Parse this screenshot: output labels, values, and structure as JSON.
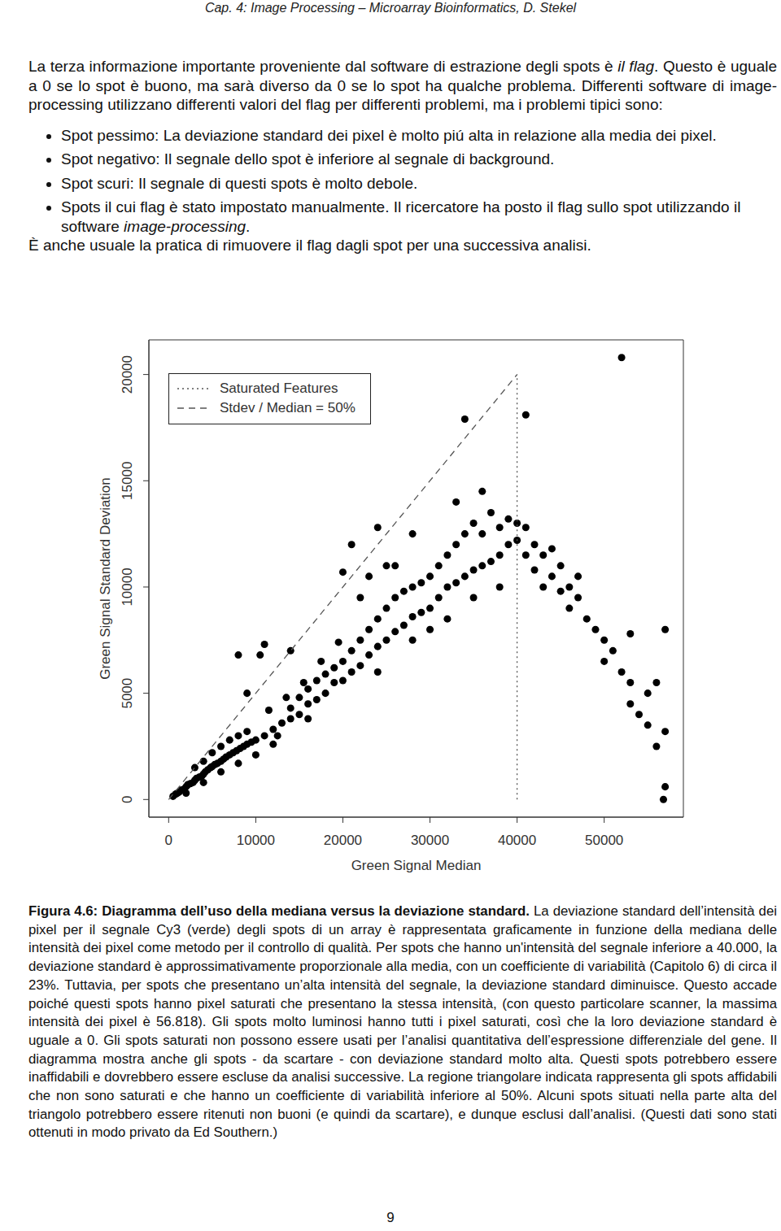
{
  "header": "Cap. 4: Image Processing – Microarray Bioinformatics, D. Stekel",
  "intro": [
    {
      "text": "La terza informazione importante proveniente dal software di estrazione degli spots è "
    },
    {
      "text": "il flag",
      "italic": true
    },
    {
      "text": ". Questo è uguale a 0 se lo spot è buono, ma sarà diverso da 0 se lo spot  ha qualche problema. Differenti software di image-processing utilizzano differenti valori del flag per differenti problemi, ma i problemi tipici sono:"
    }
  ],
  "bullets": [
    [
      {
        "text": "Spot pessimo: La deviazione standard dei pixel è molto piú alta in relazione alla media dei pixel."
      }
    ],
    [
      {
        "text": "Spot negativo: Il segnale dello spot è inferiore al segnale di background."
      }
    ],
    [
      {
        "text": "Spot scuri: Il segnale di questi spots è molto debole."
      }
    ],
    [
      {
        "text": "Spots il cui flag è stato impostato manualmente.  Il ricercatore ha posto il flag sullo spot utilizzando il software "
      },
      {
        "text": "image-processing",
        "italic": true
      },
      {
        "text": "."
      }
    ]
  ],
  "outro": "È anche usuale la pratica di rimuovere il flag dagli spot per una successiva analisi.",
  "chart_data": {
    "type": "scatter",
    "xlabel": "Green Signal Median",
    "ylabel": "Green Signal Standard Deviation",
    "xlim": [
      -2270,
      59090
    ],
    "ylim": [
      -830,
      21630
    ],
    "xticks": [
      0,
      10000,
      20000,
      30000,
      40000,
      50000
    ],
    "yticks": [
      0,
      5000,
      10000,
      15000,
      20000
    ],
    "legend": "upper left",
    "series": [
      {
        "type": "scatter",
        "color": "#000000",
        "marker": "circle",
        "x": [
          500,
          800,
          1000,
          1200,
          1500,
          1800,
          2000,
          2200,
          2500,
          2800,
          3000,
          3200,
          3500,
          3800,
          4000,
          4200,
          4500,
          4800,
          5000,
          5300,
          5600,
          6000,
          6300,
          6600,
          7000,
          7400,
          7800,
          8200,
          8600,
          9000,
          9500,
          10000,
          3000,
          4000,
          5000,
          6000,
          7000,
          8000,
          9000,
          2000,
          4000,
          6000,
          8000,
          10000,
          11000,
          12000,
          12500,
          13000,
          14000,
          14000,
          15000,
          15000,
          16000,
          16000,
          17000,
          17000,
          18000,
          18000,
          19000,
          19000,
          20000,
          20000,
          11500,
          13500,
          15500,
          17500,
          19500,
          12000,
          16000,
          9000,
          14000,
          10500,
          8000,
          11000,
          21000,
          20000,
          24000,
          34000,
          41000,
          52000,
          25000,
          28000,
          23000,
          21000,
          21000,
          22000,
          22000,
          23000,
          23000,
          24000,
          24000,
          25000,
          25000,
          26000,
          26000,
          27000,
          27000,
          28000,
          28000,
          29000,
          29000,
          30000,
          30000,
          22000,
          26000,
          28000,
          24000,
          30000,
          31000,
          31000,
          32000,
          32000,
          33000,
          33000,
          34000,
          34000,
          35000,
          35000,
          36000,
          36000,
          37000,
          37000,
          38000,
          38000,
          39000,
          39000,
          40000,
          40000,
          32000,
          35000,
          38000,
          36000,
          33000,
          41000,
          41000,
          42000,
          42000,
          43000,
          43000,
          44000,
          44000,
          45000,
          45000,
          46000,
          46000,
          47000,
          47000,
          48000,
          49000,
          50000,
          50000,
          51000,
          52000,
          53000,
          53000,
          54000,
          55000,
          55000,
          56000,
          56000,
          57000,
          57000,
          56800,
          53000,
          57000
        ],
        "y": [
          150,
          250,
          300,
          350,
          450,
          500,
          600,
          700,
          750,
          800,
          900,
          1000,
          1050,
          1100,
          1200,
          1300,
          1400,
          1500,
          1550,
          1650,
          1700,
          1800,
          1900,
          2000,
          2100,
          2200,
          2300,
          2400,
          2500,
          2600,
          2700,
          2800,
          1500,
          1800,
          2200,
          2500,
          2800,
          3000,
          3200,
          300,
          800,
          1300,
          1700,
          2100,
          3000,
          3300,
          3000,
          3600,
          3800,
          4300,
          4000,
          4800,
          4500,
          5200,
          4700,
          5600,
          5000,
          5900,
          5500,
          6200,
          5600,
          6500,
          4200,
          4800,
          5500,
          6500,
          7400,
          2600,
          3800,
          5000,
          7000,
          6800,
          6800,
          7300,
          12000,
          10700,
          12800,
          17900,
          18100,
          20800,
          11000,
          12500,
          10500,
          6000,
          7000,
          6300,
          7500,
          6800,
          8000,
          7200,
          8500,
          7500,
          9000,
          7900,
          9500,
          8200,
          9800,
          8600,
          10000,
          8800,
          10200,
          9000,
          10500,
          9500,
          11000,
          7500,
          6000,
          8000,
          9500,
          11000,
          10000,
          11500,
          10200,
          12000,
          10500,
          12500,
          10800,
          13000,
          11000,
          12500,
          11200,
          13500,
          11500,
          12800,
          12000,
          13200,
          12200,
          13000,
          8500,
          9500,
          10000,
          14500,
          14000,
          11500,
          12800,
          12000,
          10800,
          11500,
          10000,
          10500,
          11800,
          9800,
          11000,
          10000,
          9000,
          9500,
          10500,
          8500,
          8000,
          7500,
          6500,
          7000,
          6000,
          5500,
          4500,
          4000,
          5000,
          3500,
          2500,
          5500,
          3200,
          600,
          0,
          7800,
          8000
        ]
      },
      {
        "name": "Saturated Features",
        "type": "line",
        "line_style": "dotted",
        "color": "#555555",
        "x": [
          40000,
          40000
        ],
        "y": [
          0,
          20000
        ]
      },
      {
        "name": "Stdev / Median = 50%",
        "type": "line",
        "line_style": "dashed",
        "color": "#555555",
        "x": [
          0,
          40000
        ],
        "y": [
          0,
          20000
        ]
      }
    ]
  },
  "caption": [
    {
      "text": "Figura 4.6: Diagramma dell’uso della mediana versus la deviazione standard.",
      "bold": true
    },
    {
      "text": " La deviazione standard dell’intensità dei pixel per il segnale Cy3 (verde) degli spots di un array è rappresentata graficamente in funzione della mediana delle intensità dei pixel come metodo per il controllo di qualità. Per spots che hanno un'intensità del segnale inferiore a 40.000, la deviazione standard è approssimativamente proporzionale alla media, con un coefficiente di variabilità (Capitolo 6) di circa il 23%. Tuttavia, per spots che presentano un’alta intensità del segnale, la deviazione standard diminuisce. Questo accade poiché questi spots hanno pixel saturati che presentano la stessa intensità, (con questo particolare scanner, la massima intensità dei pixel è 56.818). Gli spots molto luminosi hanno tutti i pixel saturati, così che la loro deviazione standard è uguale a 0. Gli spots saturati non possono essere usati per l’analisi quantitativa dell’espressione differenziale del gene. Il diagramma mostra anche gli spots - da scartare - con deviazione standard molto alta. Questi spots potrebbero essere inaffidabili e dovrebbero essere escluse da analisi successive. La regione triangolare indicata rappresenta gli spots affidabili che non sono saturati e che hanno un coefficiente di variabilità inferiore al 50%. Alcuni spots situati nella parte alta del triangolo potrebbero essere ritenuti non buoni (e quindi da scartare), e dunque esclusi dall’analisi. (Questi dati sono stati ottenuti in modo privato da Ed Southern.)"
    }
  ],
  "page_number": "9"
}
